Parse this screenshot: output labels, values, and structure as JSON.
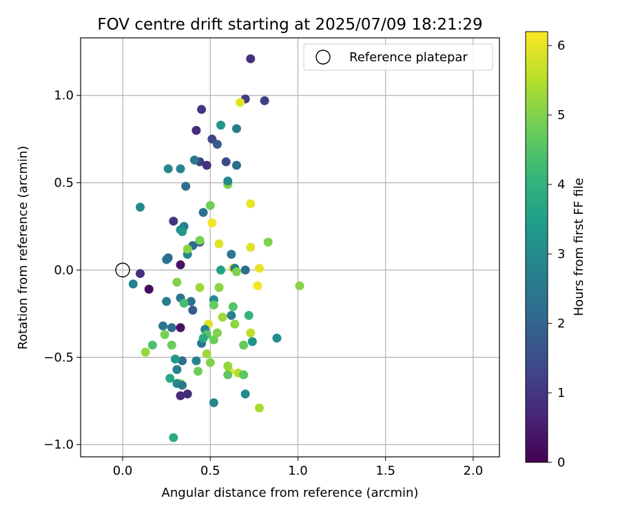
{
  "chart_data": {
    "type": "scatter",
    "title": "FOV centre drift starting at 2025/07/09 18:21:29",
    "xlabel": "Angular distance from reference (arcmin)",
    "ylabel": "Rotation from reference (arcmin)",
    "xlim": [
      -0.24,
      2.15
    ],
    "ylim": [
      -1.07,
      1.33
    ],
    "xticks": [
      0.0,
      0.5,
      1.0,
      1.5,
      2.0
    ],
    "xtick_labels": [
      "0.0",
      "0.5",
      "1.0",
      "1.5",
      "2.0"
    ],
    "yticks": [
      -1.0,
      -0.5,
      0.0,
      0.5,
      1.0
    ],
    "ytick_labels": [
      "−1.0",
      "−0.5",
      "0.0",
      "0.5",
      "1.0"
    ],
    "grid": true,
    "legend": {
      "placement": "top-right",
      "entries": [
        "Reference platepar"
      ]
    },
    "reference_point": {
      "x": 0.0,
      "y": 0.0
    },
    "colorbar": {
      "label": "Hours from first FF file",
      "colormap": "viridis",
      "range": [
        0,
        6.2
      ],
      "ticks": [
        0,
        1,
        2,
        3,
        4,
        5,
        6
      ],
      "tick_labels": [
        "0",
        "1",
        "2",
        "3",
        "4",
        "5",
        "6"
      ]
    },
    "series": [
      {
        "points": [
          [
            0.73,
            1.21,
            0.9
          ],
          [
            0.7,
            0.98,
            1.1
          ],
          [
            0.81,
            0.97,
            1.2
          ],
          [
            0.45,
            0.92,
            1.0
          ],
          [
            0.42,
            0.8,
            0.8
          ],
          [
            0.51,
            0.75,
            1.3
          ],
          [
            0.54,
            0.72,
            1.8
          ],
          [
            0.44,
            0.62,
            1.2
          ],
          [
            0.48,
            0.6,
            0.9
          ],
          [
            0.59,
            0.62,
            1.4
          ],
          [
            0.65,
            0.6,
            2.2
          ],
          [
            0.73,
            0.38,
            6.0
          ],
          [
            0.29,
            0.28,
            1.0
          ],
          [
            0.51,
            0.27,
            6.1
          ],
          [
            0.55,
            0.15,
            5.9
          ],
          [
            0.73,
            0.13,
            5.9
          ],
          [
            0.62,
            0.09,
            2.5
          ],
          [
            0.33,
            0.03,
            0.3
          ],
          [
            0.1,
            -0.02,
            0.9
          ],
          [
            0.15,
            -0.11,
            0.2
          ],
          [
            0.33,
            -0.33,
            0.3
          ],
          [
            0.33,
            -0.72,
            0.7
          ],
          [
            0.37,
            -0.71,
            0.8
          ],
          [
            0.33,
            -0.65,
            5.1
          ],
          [
            0.78,
            -0.79,
            5.4
          ],
          [
            0.63,
            0.01,
            6.0
          ],
          [
            0.78,
            0.01,
            6.0
          ],
          [
            0.77,
            -0.09,
            6.1
          ],
          [
            0.49,
            -0.31,
            5.9
          ],
          [
            0.73,
            -0.36,
            5.6
          ],
          [
            0.61,
            -0.58,
            6.0
          ],
          [
            0.66,
            -0.59,
            5.5
          ],
          [
            0.67,
            0.96,
            5.9
          ],
          [
            0.56,
            0.83,
            3.2
          ],
          [
            0.65,
            0.81,
            2.6
          ],
          [
            0.41,
            0.63,
            2.5
          ],
          [
            0.26,
            0.58,
            2.9
          ],
          [
            0.33,
            0.58,
            2.8
          ],
          [
            0.36,
            0.48,
            2.2
          ],
          [
            0.1,
            0.36,
            2.9
          ],
          [
            0.46,
            0.33,
            2.3
          ],
          [
            0.33,
            0.23,
            3.0
          ],
          [
            0.35,
            0.25,
            2.7
          ],
          [
            0.34,
            0.22,
            3.3
          ],
          [
            0.4,
            0.14,
            2.2
          ],
          [
            0.44,
            0.16,
            1.6
          ],
          [
            0.37,
            0.09,
            2.9
          ],
          [
            0.25,
            0.06,
            2.6
          ],
          [
            0.26,
            0.07,
            2.2
          ],
          [
            0.56,
            0.0,
            3.5
          ],
          [
            0.64,
            0.01,
            2.6
          ],
          [
            0.7,
            0.0,
            2.2
          ],
          [
            0.06,
            -0.08,
            2.7
          ],
          [
            0.25,
            -0.18,
            2.6
          ],
          [
            0.33,
            -0.16,
            2.4
          ],
          [
            0.39,
            -0.18,
            2.2
          ],
          [
            0.4,
            -0.23,
            1.8
          ],
          [
            0.52,
            -0.17,
            3.0
          ],
          [
            0.62,
            -0.26,
            2.7
          ],
          [
            0.23,
            -0.32,
            2.4
          ],
          [
            0.28,
            -0.33,
            2.2
          ],
          [
            0.47,
            -0.34,
            2.8
          ],
          [
            0.45,
            -0.42,
            2.5
          ],
          [
            0.74,
            -0.41,
            3.2
          ],
          [
            0.88,
            -0.39,
            3.0
          ],
          [
            0.34,
            -0.52,
            2.2
          ],
          [
            0.3,
            -0.51,
            3.3
          ],
          [
            0.31,
            -0.57,
            2.7
          ],
          [
            0.42,
            -0.52,
            2.8
          ],
          [
            0.31,
            -0.65,
            2.9
          ],
          [
            0.34,
            -0.66,
            2.5
          ],
          [
            0.52,
            -0.76,
            2.9
          ],
          [
            0.7,
            -0.71,
            3.0
          ],
          [
            0.29,
            -0.96,
            3.8
          ],
          [
            0.27,
            -0.62,
            3.7
          ],
          [
            0.6,
            0.49,
            5.0
          ],
          [
            0.6,
            0.51,
            2.9
          ],
          [
            0.5,
            0.37,
            4.8
          ],
          [
            0.37,
            0.12,
            5.1
          ],
          [
            0.44,
            0.17,
            4.9
          ],
          [
            0.83,
            0.16,
            5.0
          ],
          [
            1.01,
            -0.09,
            5.1
          ],
          [
            0.65,
            -0.01,
            5.0
          ],
          [
            0.55,
            -0.1,
            5.1
          ],
          [
            0.44,
            -0.1,
            5.3
          ],
          [
            0.31,
            -0.07,
            5.0
          ],
          [
            0.35,
            -0.19,
            4.3
          ],
          [
            0.52,
            -0.2,
            4.7
          ],
          [
            0.63,
            -0.21,
            4.5
          ],
          [
            0.57,
            -0.27,
            5.3
          ],
          [
            0.64,
            -0.31,
            5.1
          ],
          [
            0.72,
            -0.26,
            4.0
          ],
          [
            0.24,
            -0.37,
            4.9
          ],
          [
            0.48,
            -0.37,
            4.5
          ],
          [
            0.52,
            -0.4,
            4.8
          ],
          [
            0.54,
            -0.36,
            5.0
          ],
          [
            0.28,
            -0.43,
            4.8
          ],
          [
            0.17,
            -0.43,
            4.4
          ],
          [
            0.13,
            -0.47,
            5.2
          ],
          [
            0.48,
            -0.48,
            5.3
          ],
          [
            0.5,
            -0.53,
            5.0
          ],
          [
            0.69,
            -0.43,
            4.7
          ],
          [
            0.6,
            -0.55,
            5.2
          ],
          [
            0.6,
            -0.6,
            4.6
          ],
          [
            0.43,
            -0.58,
            4.8
          ],
          [
            0.69,
            -0.6,
            4.6
          ],
          [
            0.46,
            -0.39,
            3.8
          ]
        ]
      }
    ]
  }
}
